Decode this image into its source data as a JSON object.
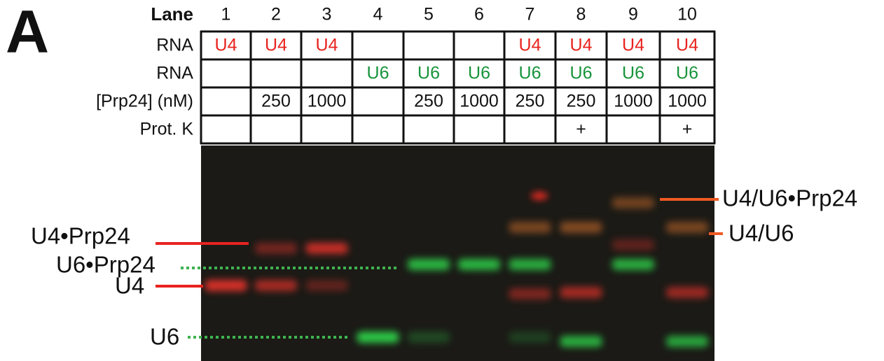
{
  "panel_label": "A",
  "lane_header": "Lane",
  "lanes": [
    "1",
    "2",
    "3",
    "4",
    "5",
    "6",
    "7",
    "8",
    "9",
    "10"
  ],
  "rows": [
    {
      "label": "RNA",
      "color": "#e8231f",
      "cells": [
        "U4",
        "U4",
        "U4",
        null,
        null,
        null,
        "U4",
        "U4",
        "U4",
        "U4"
      ]
    },
    {
      "label": "RNA",
      "color": "#17943a",
      "cells": [
        null,
        null,
        null,
        "U6",
        "U6",
        "U6",
        "U6",
        "U6",
        "U6",
        "U6"
      ]
    },
    {
      "label": "[Prp24] (nM)",
      "color": "#111111",
      "cells": [
        null,
        "250",
        "1000",
        null,
        "250",
        "1000",
        "250",
        "250",
        "1000",
        "1000"
      ]
    },
    {
      "label": "Prot. K",
      "color": "#111111",
      "cells": [
        null,
        null,
        null,
        null,
        null,
        null,
        null,
        "+",
        null,
        "+"
      ]
    }
  ],
  "band_labels": {
    "u4_prp24": "U4•Prp24",
    "u6_prp24": "U6•Prp24",
    "u4": "U4",
    "u6": "U6",
    "u4u6_prp24": "U4/U6•Prp24",
    "u4u6": "U4/U6"
  }
}
